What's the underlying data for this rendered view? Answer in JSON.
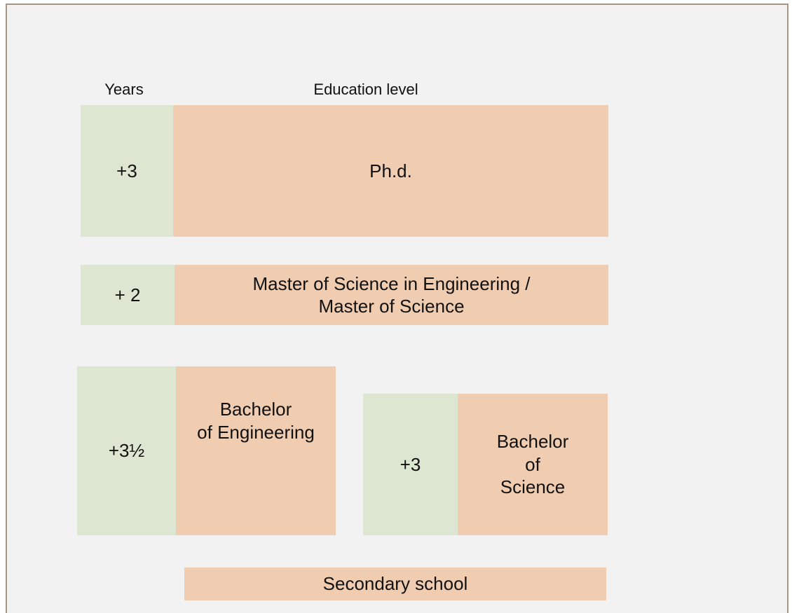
{
  "header": {
    "years": "Years",
    "education_level": "Education level"
  },
  "levels": [
    {
      "years": "+3",
      "label": [
        "Ph.d."
      ]
    },
    {
      "years": "+ 2",
      "label": [
        "Master of Science in Engineering /",
        "Master of Science"
      ]
    },
    {
      "years": "+3½",
      "label": [
        "Bachelor",
        "of Engineering"
      ]
    },
    {
      "years": "+3",
      "label": [
        "Bachelor",
        "of",
        "Science"
      ]
    }
  ],
  "base": "Secondary school"
}
